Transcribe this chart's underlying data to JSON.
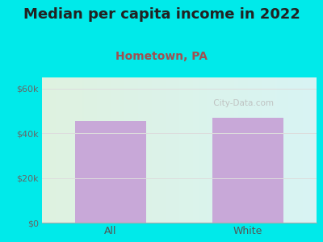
{
  "title": "Median per capita income in 2022",
  "subtitle": "Hometown, PA",
  "categories": [
    "All",
    "White"
  ],
  "values": [
    45500,
    47000
  ],
  "bar_color": "#c8a8d8",
  "title_fontsize": 13,
  "subtitle_fontsize": 10,
  "title_color": "#222222",
  "subtitle_color": "#a05050",
  "tick_label_color": "#666666",
  "xtick_label_color": "#555555",
  "ylim": [
    0,
    65000
  ],
  "yticks": [
    0,
    20000,
    40000,
    60000
  ],
  "ytick_labels": [
    "$0",
    "$20k",
    "$40k",
    "$60k"
  ],
  "bg_outer_color": "#00eaea",
  "bg_inner_left": "#dff2e0",
  "bg_inner_right": "#d8f4f4",
  "watermark": " City-Data.com",
  "bar_width": 0.52,
  "grid_color": "#dddddd"
}
